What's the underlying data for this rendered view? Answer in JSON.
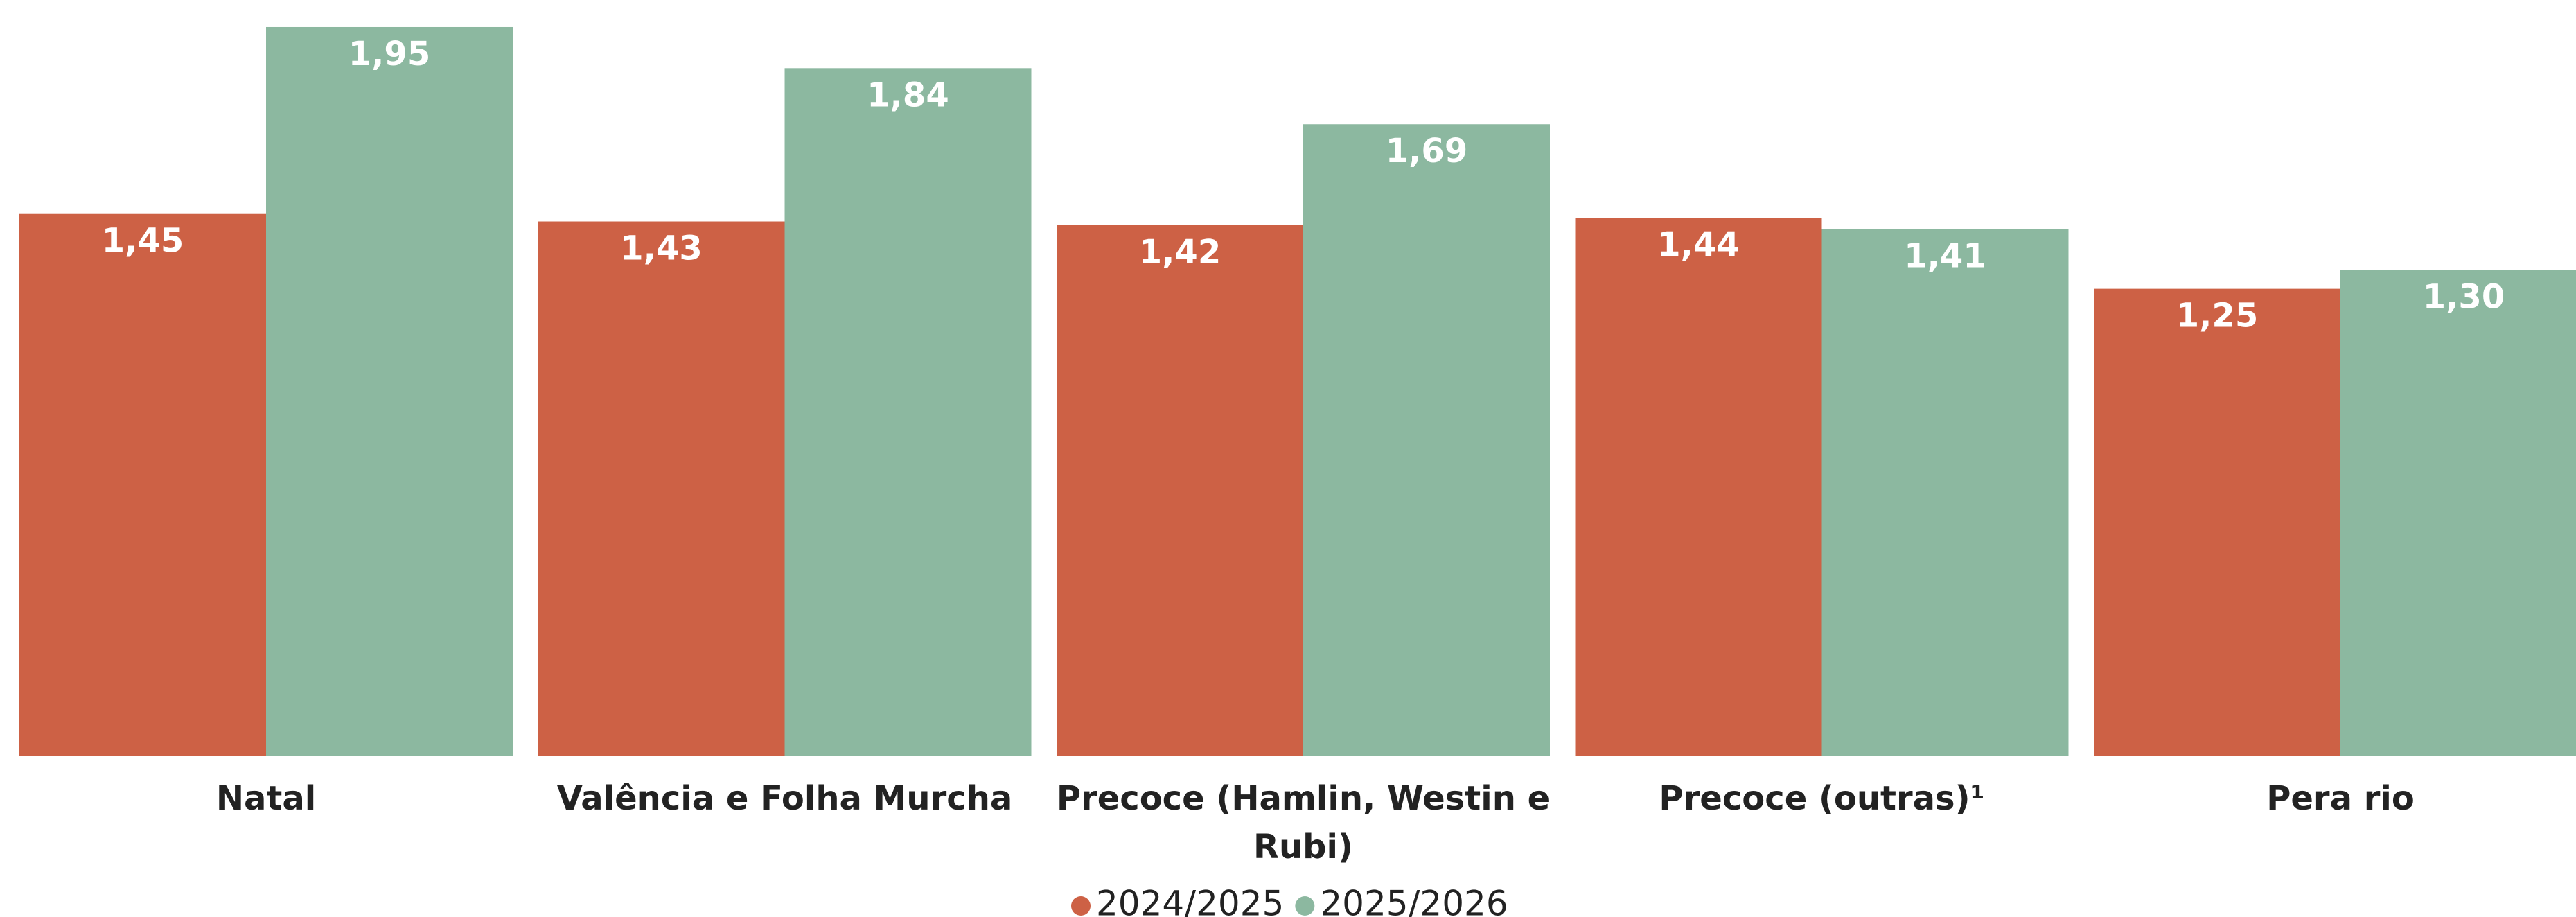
{
  "chart_data": {
    "type": "bar",
    "categories": [
      "Natal",
      "Valência e Folha Murcha",
      "Precoce (Hamlin, Westin e Rubi)",
      "Precoce (outras)¹",
      "Pera rio"
    ],
    "series": [
      {
        "name": "2024/2025",
        "color": "#cd6145",
        "values": [
          1.45,
          1.43,
          1.42,
          1.44,
          1.25
        ],
        "value_labels": [
          "1,45",
          "1,43",
          "1,42",
          "1,44",
          "1,25"
        ]
      },
      {
        "name": "2025/2026",
        "color": "#8cb8a0",
        "values": [
          1.95,
          1.84,
          1.69,
          1.41,
          1.3
        ],
        "value_labels": [
          "1,95",
          "1,84",
          "1,69",
          "1,41",
          "1,30"
        ]
      }
    ],
    "ylim": [
      0,
      2
    ],
    "legend": "bottom"
  }
}
